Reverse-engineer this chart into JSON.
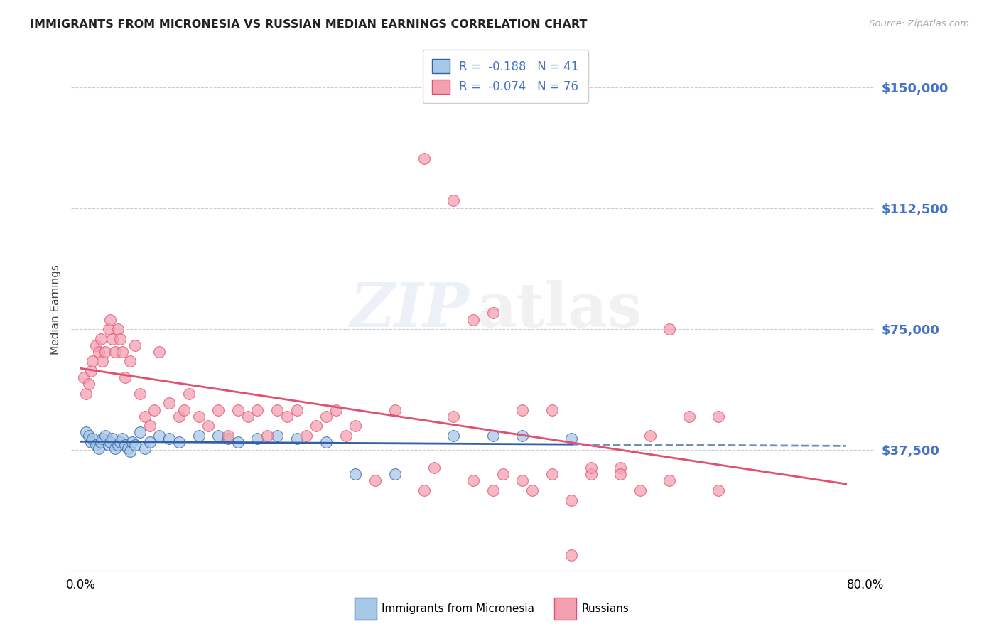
{
  "title": "IMMIGRANTS FROM MICRONESIA VS RUSSIAN MEDIAN EARNINGS CORRELATION CHART",
  "source": "Source: ZipAtlas.com",
  "ylabel": "Median Earnings",
  "ytick_labels": [
    "$150,000",
    "$112,500",
    "$75,000",
    "$37,500"
  ],
  "ytick_values": [
    150000,
    112500,
    75000,
    37500
  ],
  "legend_label1": "Immigrants from Micronesia",
  "legend_label2": "Russians",
  "legend_r1": "R =  -0.188",
  "legend_n1": "N = 41",
  "legend_r2": "R =  -0.074",
  "legend_n2": "N = 76",
  "color_blue": "#a8c8e8",
  "color_pink": "#f4a0b0",
  "color_blue_line": "#3060a8",
  "color_pink_line": "#e05070",
  "color_label": "#4472c4",
  "background_color": "#ffffff",
  "blue_dots_x": [
    0.5,
    0.8,
    1.0,
    1.2,
    1.5,
    1.8,
    2.0,
    2.2,
    2.5,
    2.8,
    3.0,
    3.2,
    3.5,
    3.8,
    4.0,
    4.2,
    4.5,
    4.8,
    5.0,
    5.2,
    5.5,
    6.0,
    6.5,
    7.0,
    8.0,
    9.0,
    10.0,
    12.0,
    14.0,
    15.0,
    16.0,
    18.0,
    20.0,
    22.0,
    25.0,
    28.0,
    32.0,
    38.0,
    42.0,
    45.0,
    50.0
  ],
  "blue_dots_y": [
    43000,
    42000,
    40000,
    41000,
    39000,
    38000,
    40000,
    41000,
    42000,
    39000,
    40000,
    41000,
    38000,
    39000,
    40000,
    41000,
    39000,
    38000,
    37000,
    40000,
    39000,
    43000,
    38000,
    40000,
    42000,
    41000,
    40000,
    42000,
    42000,
    41000,
    40000,
    41000,
    42000,
    41000,
    40000,
    30000,
    30000,
    42000,
    42000,
    42000,
    41000
  ],
  "pink_dots_x": [
    0.3,
    0.5,
    0.8,
    1.0,
    1.2,
    1.5,
    1.8,
    2.0,
    2.2,
    2.5,
    2.8,
    3.0,
    3.2,
    3.5,
    3.8,
    4.0,
    4.2,
    4.5,
    5.0,
    5.5,
    6.0,
    6.5,
    7.0,
    7.5,
    8.0,
    9.0,
    10.0,
    10.5,
    11.0,
    12.0,
    13.0,
    14.0,
    15.0,
    16.0,
    17.0,
    18.0,
    19.0,
    20.0,
    21.0,
    22.0,
    23.0,
    24.0,
    25.0,
    26.0,
    27.0,
    28.0,
    30.0,
    32.0,
    35.0,
    36.0,
    38.0,
    40.0,
    42.0,
    43.0,
    45.0,
    46.0,
    48.0,
    50.0,
    52.0,
    55.0,
    57.0,
    60.0,
    62.0,
    65.0,
    35.0,
    38.0,
    40.0,
    42.0,
    45.0,
    48.0,
    50.0,
    52.0,
    55.0,
    58.0,
    60.0,
    65.0
  ],
  "pink_dots_y": [
    60000,
    55000,
    58000,
    62000,
    65000,
    70000,
    68000,
    72000,
    65000,
    68000,
    75000,
    78000,
    72000,
    68000,
    75000,
    72000,
    68000,
    60000,
    65000,
    70000,
    55000,
    48000,
    45000,
    50000,
    68000,
    52000,
    48000,
    50000,
    55000,
    48000,
    45000,
    50000,
    42000,
    50000,
    48000,
    50000,
    42000,
    50000,
    48000,
    50000,
    42000,
    45000,
    48000,
    50000,
    42000,
    45000,
    28000,
    50000,
    25000,
    32000,
    48000,
    28000,
    25000,
    30000,
    28000,
    25000,
    30000,
    22000,
    30000,
    32000,
    25000,
    28000,
    48000,
    48000,
    128000,
    115000,
    78000,
    80000,
    50000,
    50000,
    5000,
    32000,
    30000,
    42000,
    75000,
    25000
  ]
}
